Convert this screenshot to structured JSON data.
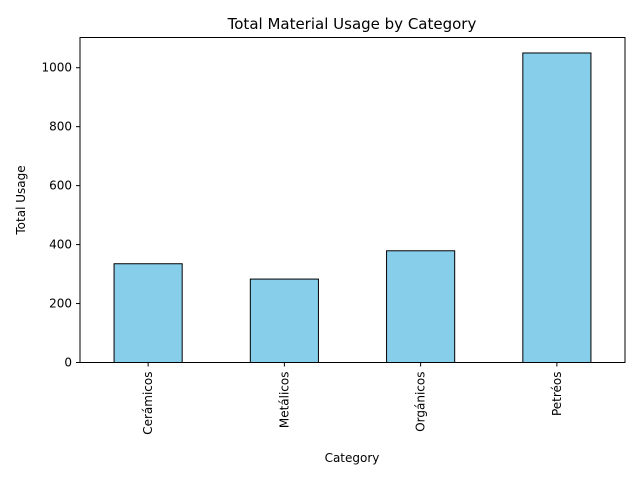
{
  "chart_data": {
    "type": "bar",
    "title": "Total Material Usage by Category",
    "xlabel": "Category",
    "ylabel": "Total Usage",
    "categories": [
      "Cerámicos",
      "Metálicos",
      "Orgánicos",
      "Petréos"
    ],
    "values": [
      335,
      283,
      379,
      1050
    ],
    "ylim": [
      0,
      1102.5
    ],
    "yticks": [
      0,
      200,
      400,
      600,
      800,
      1000
    ],
    "grid": false,
    "legend": "none",
    "bar_color": "#87ceeb",
    "bar_edge_color": "#000000"
  }
}
